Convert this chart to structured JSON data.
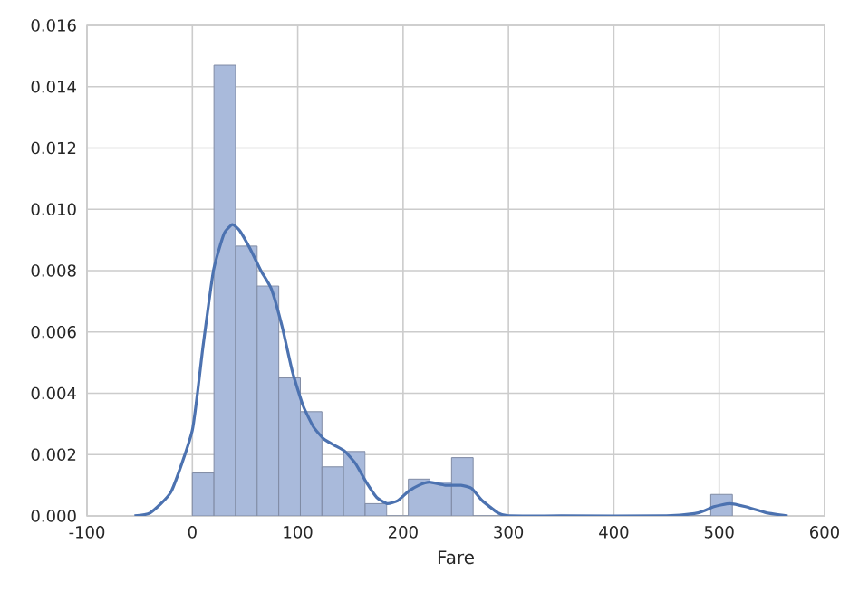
{
  "chart_data": {
    "type": "histogram",
    "xlabel": "Fare",
    "xlim": [
      -100,
      600
    ],
    "xticks": [
      -100,
      0,
      100,
      200,
      300,
      400,
      500,
      600
    ],
    "ylim": [
      0,
      0.016
    ],
    "yticks": [
      {
        "value": 0,
        "label": "0.000"
      },
      {
        "value": 0.002,
        "label": "0.002"
      },
      {
        "value": 0.004,
        "label": "0.004"
      },
      {
        "value": 0.006,
        "label": "0.006"
      },
      {
        "value": 0.008,
        "label": "0.008"
      },
      {
        "value": 0.01,
        "label": "0.010"
      },
      {
        "value": 0.012,
        "label": "0.012"
      },
      {
        "value": 0.014,
        "label": "0.014"
      },
      {
        "value": 0.016,
        "label": "0.016"
      }
    ],
    "grid": true,
    "series": [
      {
        "type": "histogram",
        "color": "#a9badb",
        "bins": [
          0,
          20.5,
          41,
          61.5,
          82,
          102.5,
          123,
          143.5,
          164,
          184.5,
          205,
          225.5,
          246,
          266.5,
          287,
          307.5,
          328,
          348.5,
          369,
          389.5,
          410,
          430.5,
          451,
          471.5,
          492,
          512.5
        ],
        "values": [
          0.0014,
          0.0147,
          0.0088,
          0.0075,
          0.0045,
          0.0034,
          0.0016,
          0.0021,
          0.0004,
          0,
          0.0012,
          0.0011,
          0.0019,
          0,
          0,
          0,
          0,
          0,
          0,
          0,
          0,
          0,
          0,
          0,
          0.0007
        ]
      },
      {
        "type": "line",
        "color": "#4c72b0",
        "x": [
          -55,
          -40,
          -20,
          0,
          10,
          20,
          30,
          38,
          45,
          55,
          65,
          75,
          85,
          95,
          105,
          115,
          125,
          135,
          145,
          155,
          165,
          175,
          185,
          195,
          205,
          215,
          225,
          240,
          255,
          265,
          275,
          290,
          300,
          350,
          450,
          480,
          495,
          510,
          525,
          545,
          565
        ],
        "values": [
          0,
          0.0001,
          0.0008,
          0.0028,
          0.0055,
          0.008,
          0.0092,
          0.0095,
          0.0093,
          0.0087,
          0.008,
          0.0074,
          0.0062,
          0.0047,
          0.0036,
          0.0029,
          0.0025,
          0.0023,
          0.0021,
          0.0017,
          0.0011,
          0.0006,
          0.0004,
          0.0005,
          0.0008,
          0.001,
          0.0011,
          0.001,
          0.001,
          0.0009,
          0.0005,
          0.0001,
          0,
          0,
          0,
          0.0001,
          0.0003,
          0.0004,
          0.0003,
          0.0001,
          0
        ]
      }
    ]
  }
}
